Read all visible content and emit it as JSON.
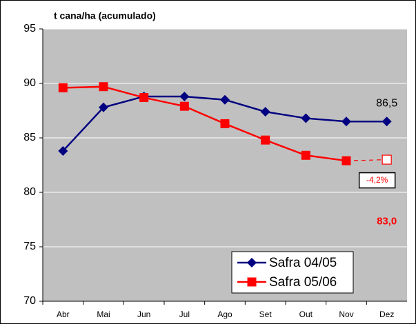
{
  "chart_data": {
    "type": "line",
    "title": "t cana/ha  (acumulado)",
    "categories": [
      "Abr",
      "Mai",
      "Jun",
      "Jul",
      "Ago",
      "Set",
      "Out",
      "Nov",
      "Dez"
    ],
    "series": [
      {
        "name": "Safra 04/05",
        "color": "#000080",
        "marker": "diamond",
        "values": [
          83.8,
          87.8,
          88.8,
          88.8,
          88.5,
          87.4,
          86.8,
          86.5,
          86.5
        ],
        "value_labels": [
          null,
          null,
          null,
          null,
          null,
          null,
          null,
          null,
          "86,5"
        ]
      },
      {
        "name": "Safra 05/06",
        "color": "#ff0000",
        "marker": "square",
        "values": [
          89.6,
          89.7,
          88.7,
          87.9,
          86.3,
          84.8,
          83.4,
          82.9,
          null
        ]
      }
    ],
    "projection": {
      "color": "#ff0000",
      "values": [
        null,
        null,
        null,
        null,
        null,
        null,
        null,
        82.9,
        83.0
      ],
      "value_labels": [
        null,
        null,
        null,
        null,
        null,
        null,
        null,
        null,
        "83,0"
      ]
    },
    "annotation": "-4,2%",
    "ylim": [
      70,
      95
    ],
    "yticks": [
      70,
      75,
      80,
      85,
      90,
      95
    ],
    "grid": true,
    "legend": "lower right"
  }
}
